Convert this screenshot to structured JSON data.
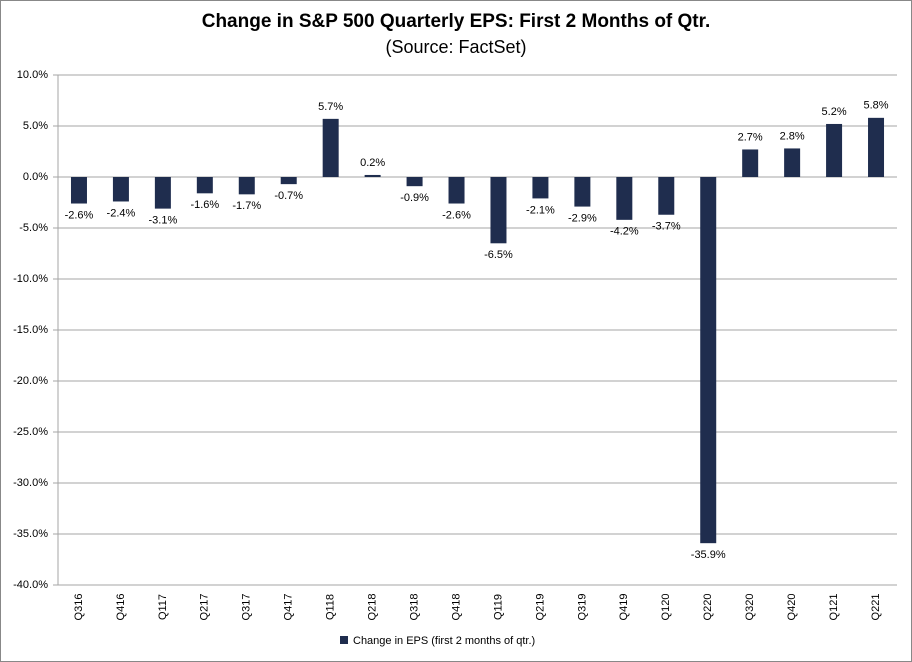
{
  "chart_data": {
    "type": "bar",
    "title": "Change in S&P 500 Quarterly EPS: First 2 Months of Qtr.",
    "subtitle": "(Source: FactSet)",
    "categories": [
      "Q316",
      "Q416",
      "Q117",
      "Q217",
      "Q317",
      "Q417",
      "Q118",
      "Q218",
      "Q318",
      "Q418",
      "Q119",
      "Q219",
      "Q319",
      "Q419",
      "Q120",
      "Q220",
      "Q320",
      "Q420",
      "Q121",
      "Q221"
    ],
    "series": [
      {
        "name": "Change in EPS (first 2 months of qtr.)",
        "color": "#1f2d4e",
        "values": [
          -2.6,
          -2.4,
          -3.1,
          -1.6,
          -1.7,
          -0.7,
          5.7,
          0.2,
          -0.9,
          -2.6,
          -6.5,
          -2.1,
          -2.9,
          -4.2,
          -3.7,
          -35.9,
          2.7,
          2.8,
          5.2,
          5.8
        ],
        "value_labels": [
          "-2.6%",
          "-2.4%",
          "-3.1%",
          "-1.6%",
          "-1.7%",
          "-0.7%",
          "5.7%",
          "0.2%",
          "-0.9%",
          "-2.6%",
          "-6.5%",
          "-2.1%",
          "-2.9%",
          "-4.2%",
          "-3.7%",
          "-35.9%",
          "2.7%",
          "2.8%",
          "5.2%",
          "5.8%"
        ]
      }
    ],
    "ylim": [
      -40,
      10
    ],
    "yticks": [
      {
        "value": 10,
        "label": "10.0%"
      },
      {
        "value": 5,
        "label": "5.0%"
      },
      {
        "value": 0,
        "label": "0.0%"
      },
      {
        "value": -5,
        "label": "-5.0%"
      },
      {
        "value": -10,
        "label": "-10.0%"
      },
      {
        "value": -15,
        "label": "-15.0%"
      },
      {
        "value": -20,
        "label": "-20.0%"
      },
      {
        "value": -25,
        "label": "-25.0%"
      },
      {
        "value": -30,
        "label": "-30.0%"
      },
      {
        "value": -35,
        "label": "-35.0%"
      },
      {
        "value": -40,
        "label": "-40.0%"
      }
    ],
    "grid": true,
    "legend": "bottom"
  }
}
